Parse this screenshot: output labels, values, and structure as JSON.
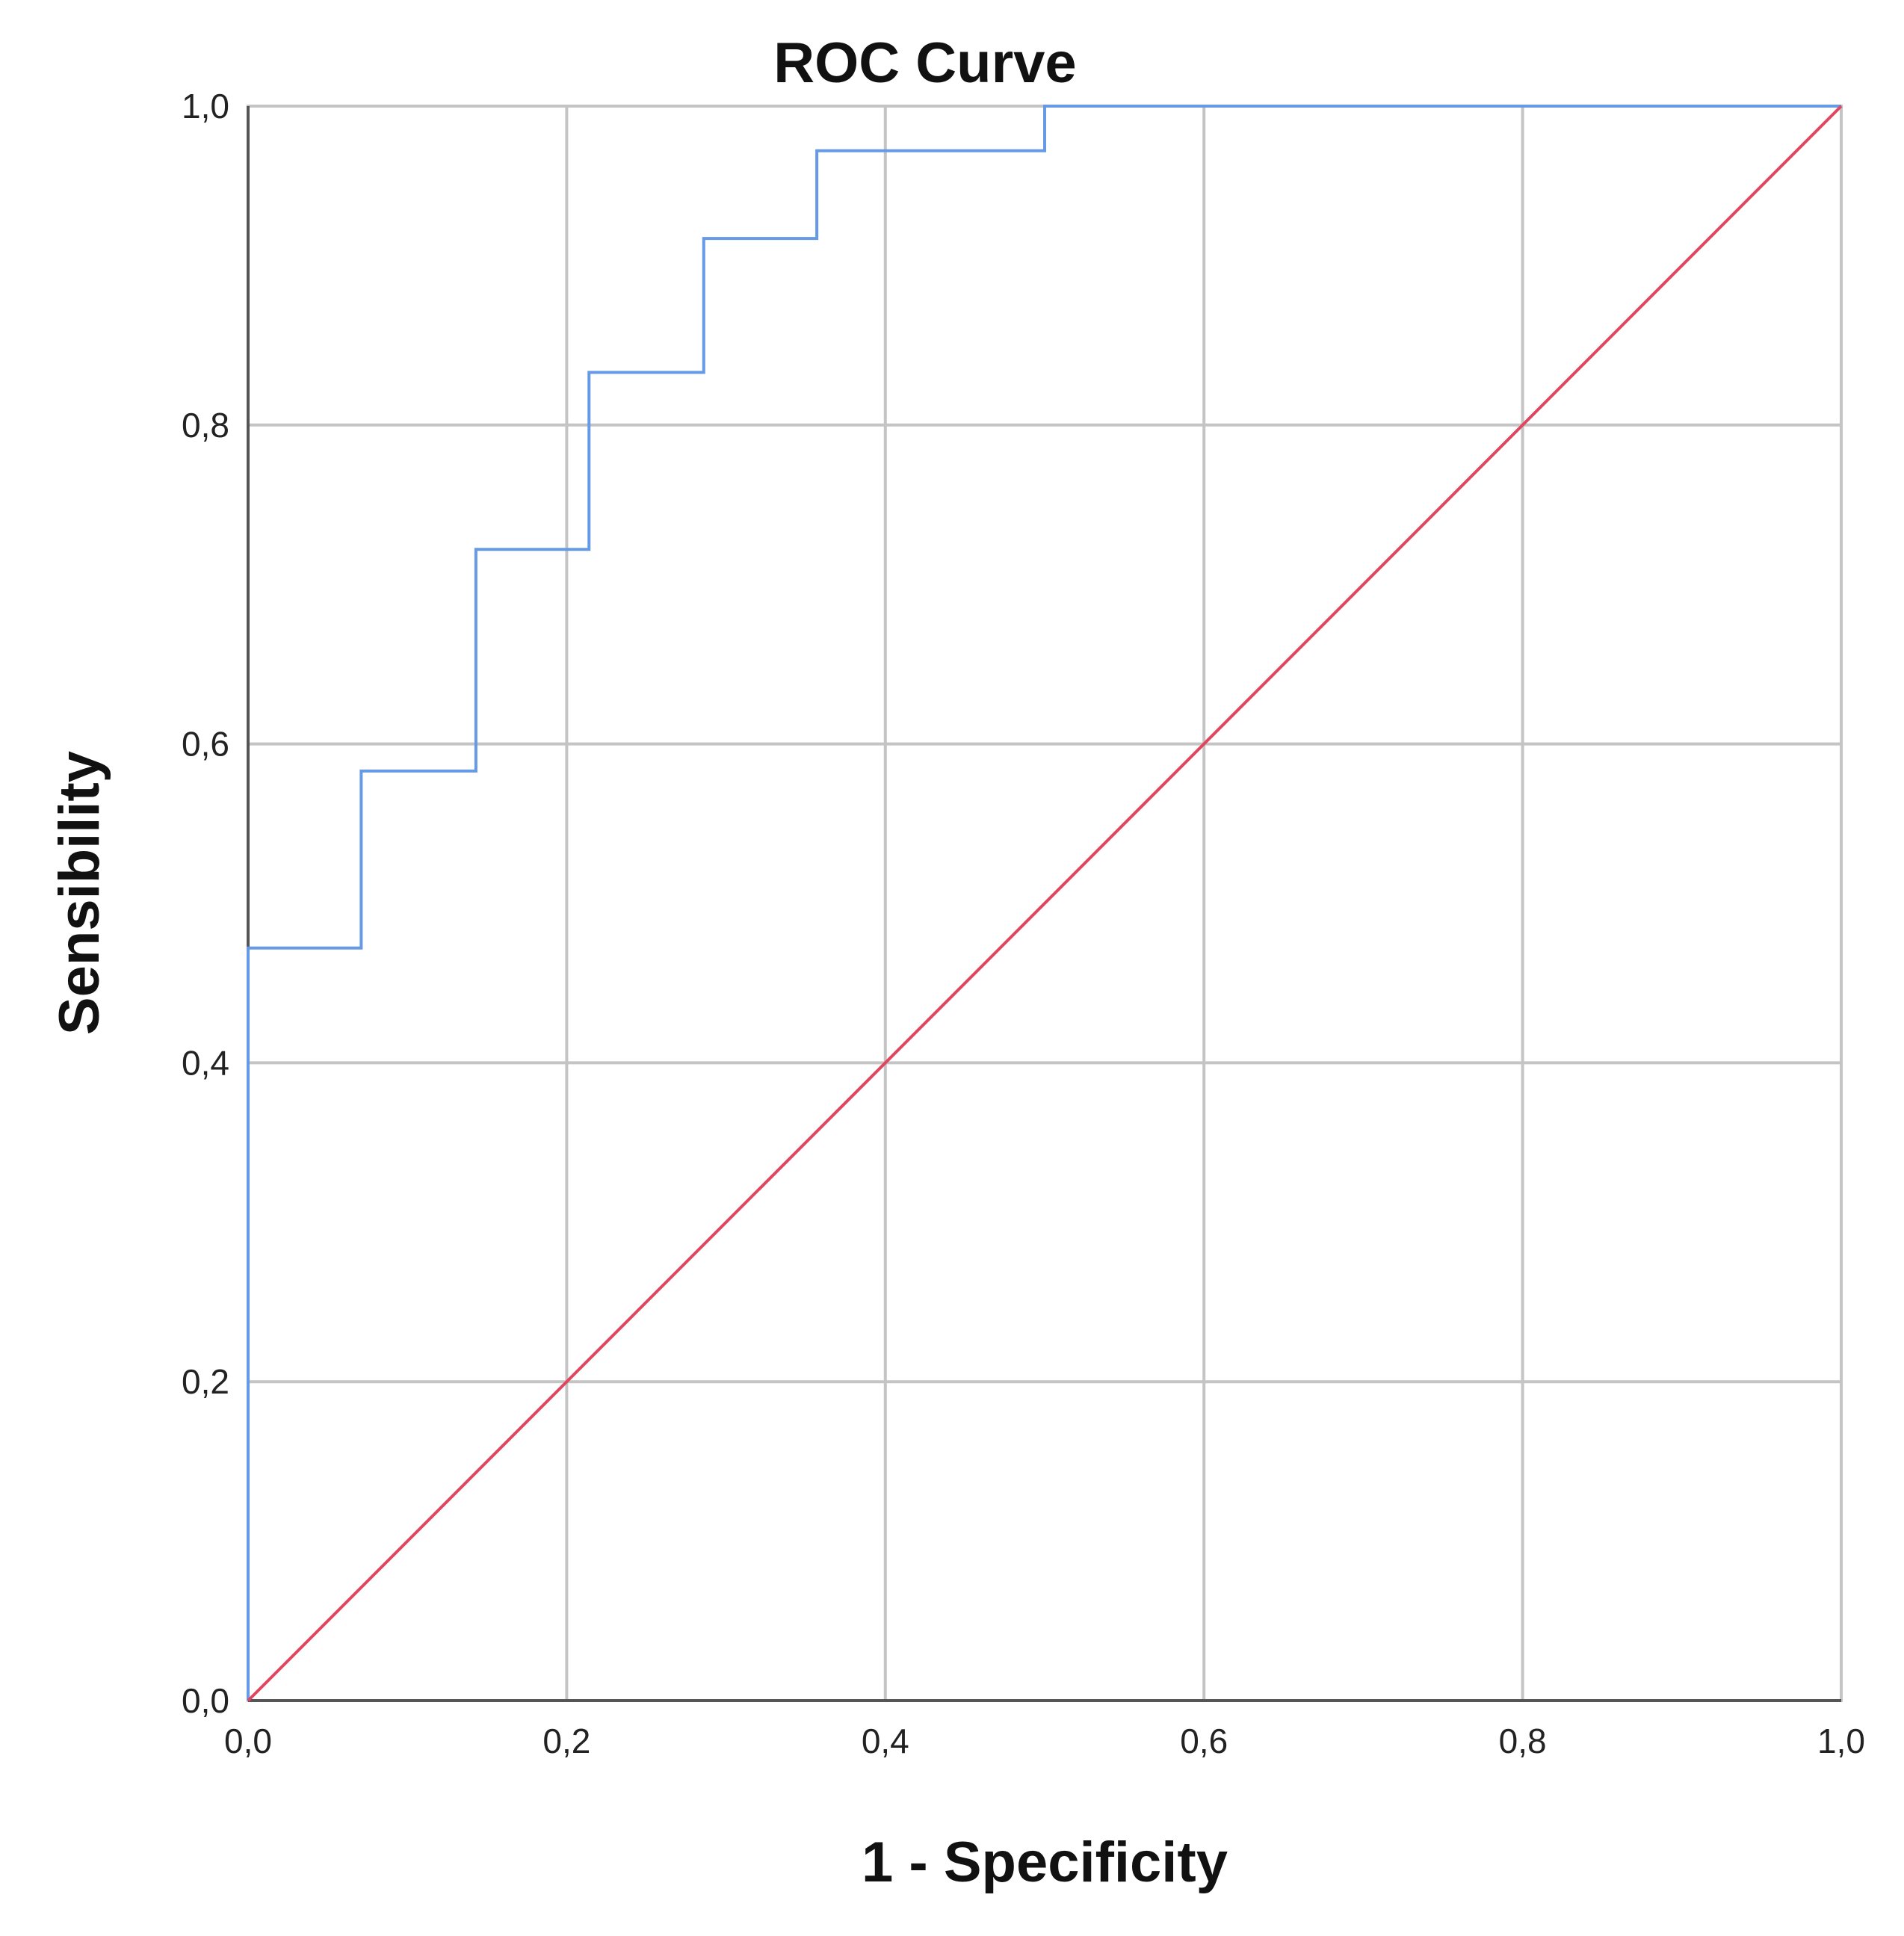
{
  "chart_data": {
    "type": "line",
    "title": "ROC Curve",
    "xlabel": "1 - Specificity",
    "ylabel": "Sensibility",
    "xlim": [
      0,
      1
    ],
    "ylim": [
      0,
      1
    ],
    "x_ticks": [
      "0,0",
      "0,2",
      "0,4",
      "0,6",
      "0,8",
      "1,0"
    ],
    "y_ticks": [
      "0,0",
      "0,2",
      "0,4",
      "0,6",
      "0,8",
      "1,0"
    ],
    "x_tick_values": [
      0,
      0.2,
      0.4,
      0.6,
      0.8,
      1.0
    ],
    "y_tick_values": [
      0,
      0.2,
      0.4,
      0.6,
      0.8,
      1.0
    ],
    "grid": true,
    "legend": "none",
    "series": [
      {
        "color": "#6699e6",
        "step": true,
        "x": [
          0,
          0,
          0.071,
          0.071,
          0.143,
          0.143,
          0.214,
          0.214,
          0.286,
          0.286,
          0.357,
          0.357,
          0.5,
          0.5,
          1.0
        ],
        "y": [
          0,
          0.472,
          0.472,
          0.583,
          0.583,
          0.722,
          0.722,
          0.833,
          0.833,
          0.917,
          0.917,
          0.972,
          0.972,
          1.0,
          1.0
        ]
      },
      {
        "color": "#e0465e",
        "x": [
          0,
          1
        ],
        "y": [
          0,
          1
        ]
      }
    ]
  }
}
